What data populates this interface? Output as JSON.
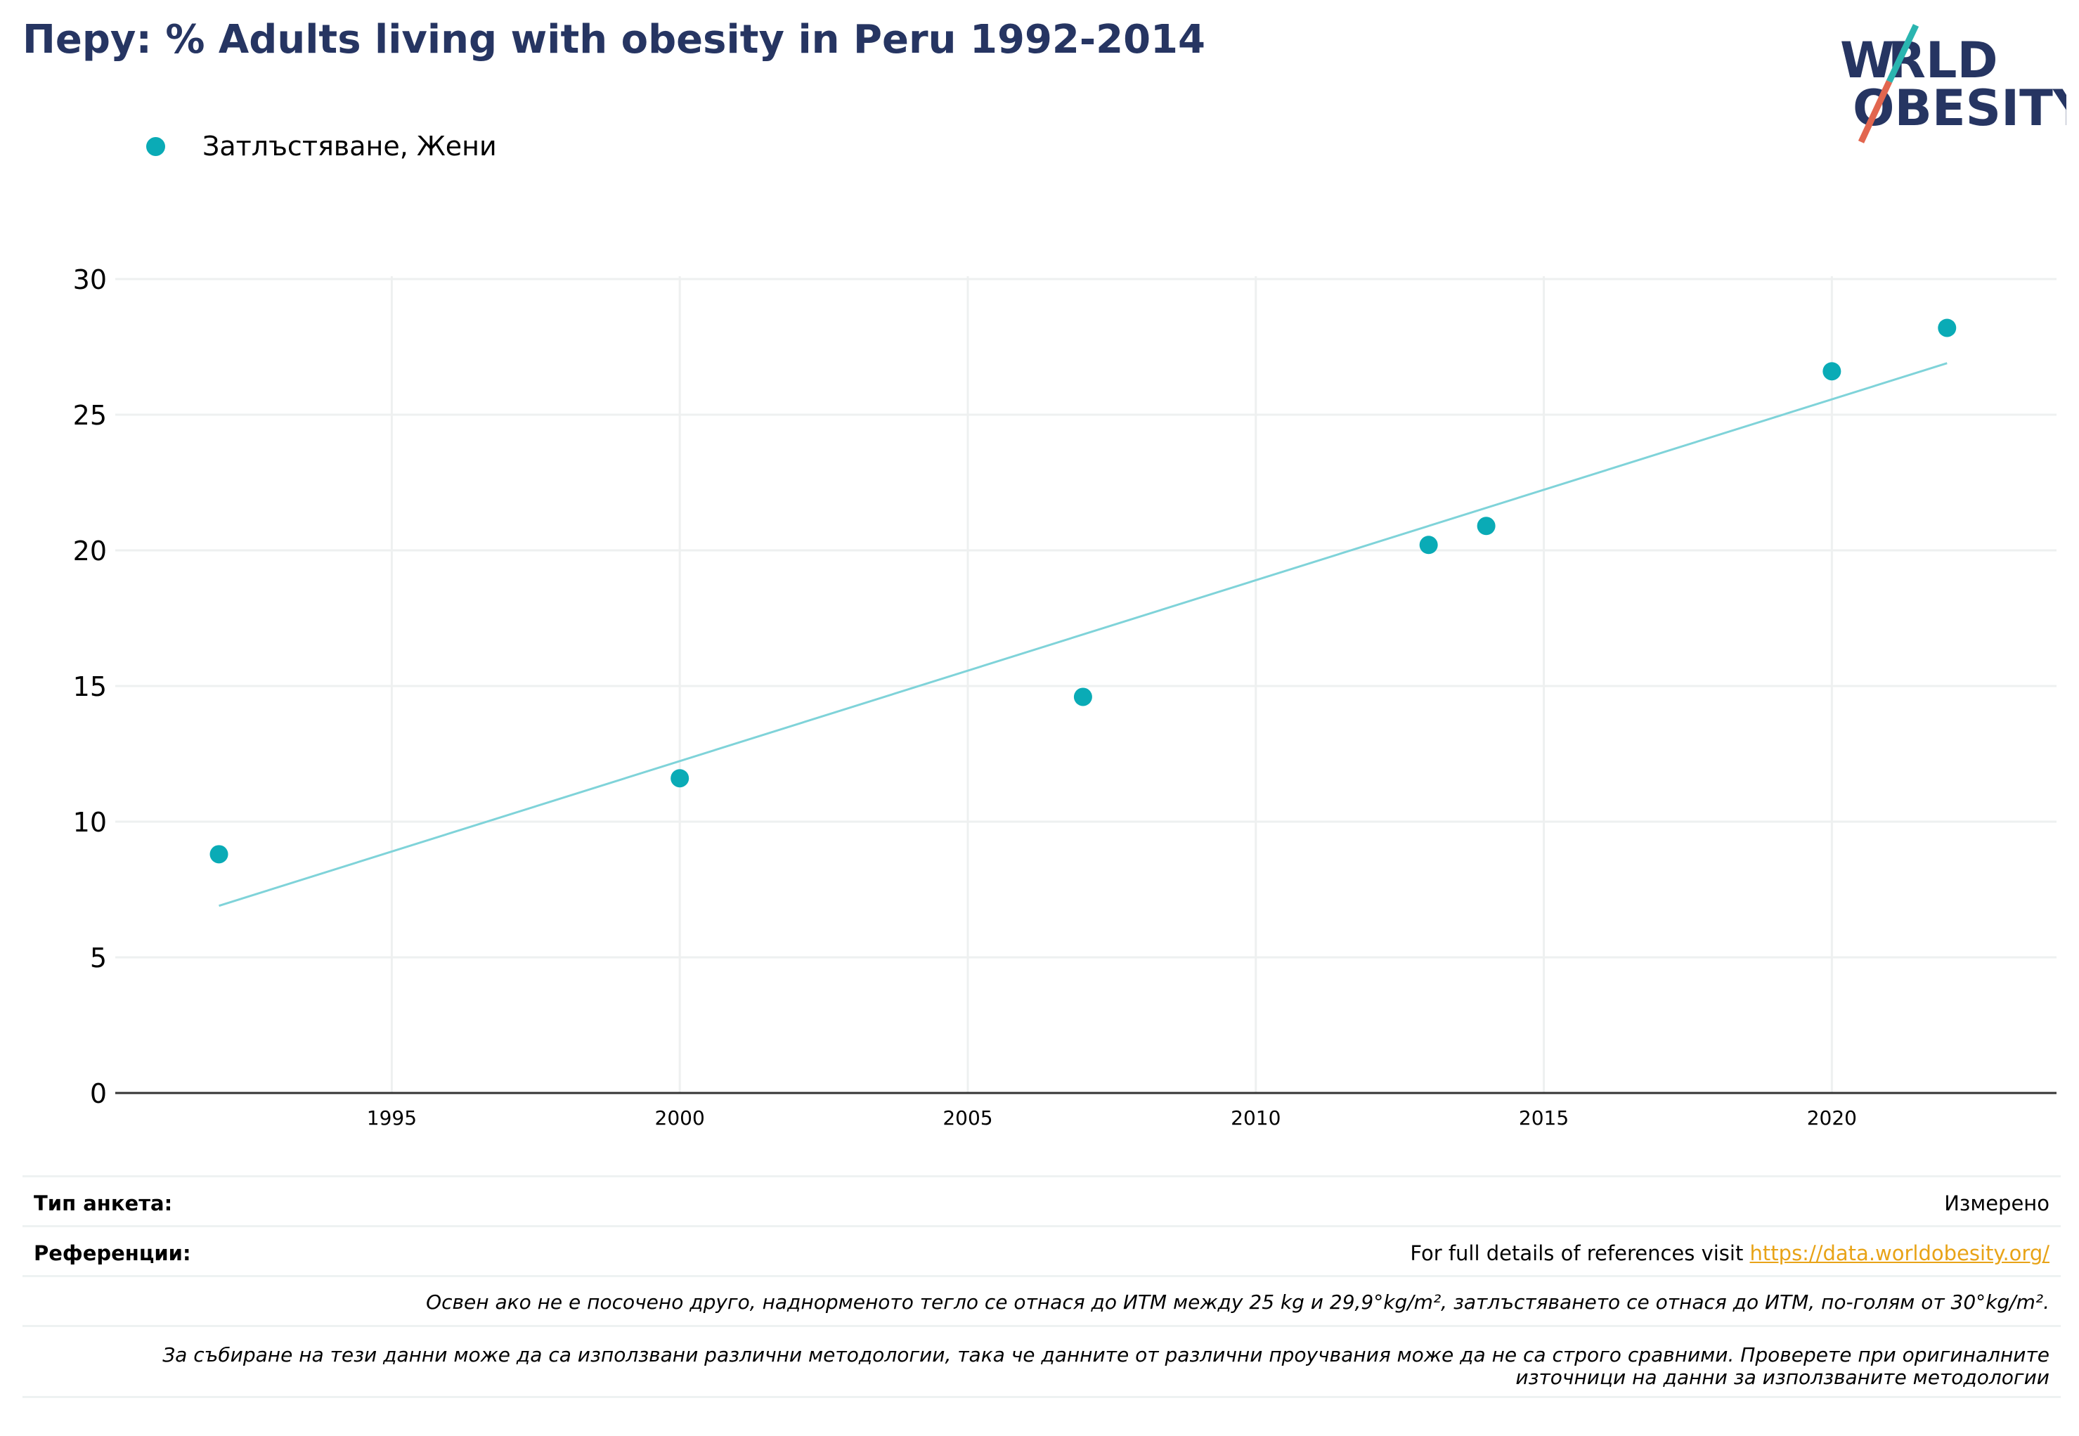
{
  "title": "Перу: % Adults living with obesity in Peru 1992-2014",
  "logo": {
    "line1": "WORLD",
    "line2": "OBESITY"
  },
  "legend": {
    "label": "Затлъстяване, Жени"
  },
  "colors": {
    "title": "#263562",
    "points": "#0aabb6",
    "trend": "#7fd3d9",
    "grid": "#eef0f0",
    "axis": "#333333",
    "link": "#e8a317",
    "logo_slash_top": "#2ab5b0",
    "logo_slash_bottom": "#e2664f"
  },
  "chart_data": {
    "type": "scatter",
    "title": "Перу: % Adults living with obesity in Peru 1992-2014",
    "xlabel": "",
    "ylabel": "",
    "xlim": [
      1990.2,
      2023.9
    ],
    "ylim": [
      0,
      30
    ],
    "xticks": [
      1995,
      2000,
      2005,
      2010,
      2015,
      2020
    ],
    "yticks": [
      0,
      5,
      10,
      15,
      20,
      25,
      30
    ],
    "grid": true,
    "legend_position": "top-left",
    "series": [
      {
        "name": "Затлъстяване, Жени",
        "x": [
          1992,
          2000,
          2007,
          2013,
          2014,
          2020,
          2022
        ],
        "y": [
          8.8,
          11.6,
          14.6,
          20.2,
          20.9,
          26.6,
          28.2
        ]
      }
    ],
    "trendline": {
      "x": [
        1992,
        2022
      ],
      "y": [
        6.9,
        26.9
      ]
    }
  },
  "footer": {
    "survey_type_label": "Тип анкета:",
    "survey_type_value": "Измерено",
    "references_label": "Референции:",
    "references_text": "For full details of references visit ",
    "references_link": "https://data.worldobesity.org/",
    "note1": "Освен ако не е посочено друго, наднорменото тегло се отнася до ИТМ между 25 kg и 29,9°kg/m², затлъстяването се отнася до ИТМ, по-голям от 30°kg/m².",
    "note2": "За събиране на тези данни може да са използвани различни методологии, така че данните от различни проучвания може да не са строго сравними. Проверете при оригиналните източници на данни за използваните методологии"
  }
}
